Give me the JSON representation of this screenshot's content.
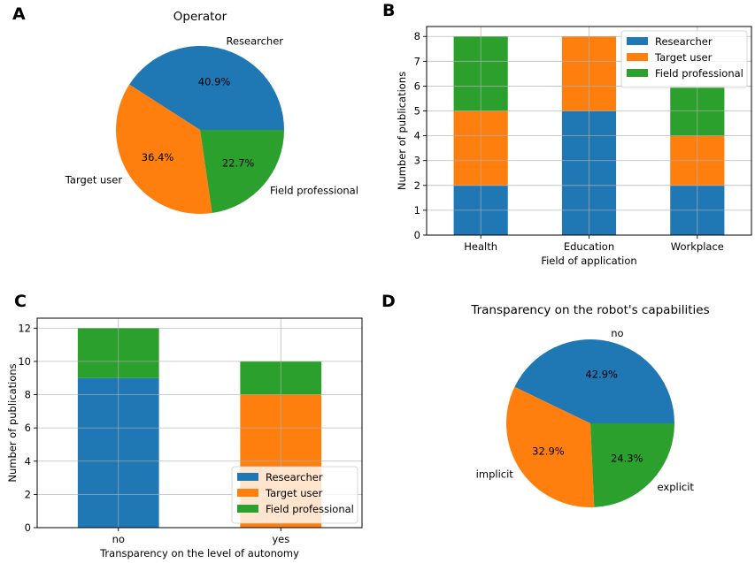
{
  "panels": {
    "A": {
      "letter": "A"
    },
    "B": {
      "letter": "B"
    },
    "C": {
      "letter": "C"
    },
    "D": {
      "letter": "D"
    }
  },
  "colors": {
    "Researcher": "#1f77b4",
    "Target user": "#ff7f0e",
    "Field professional": "#2ca02c",
    "no": "#1f77b4",
    "implicit": "#ff7f0e",
    "explicit": "#2ca02c"
  },
  "chart_data": [
    {
      "panel": "A",
      "type": "pie",
      "title": "Operator",
      "labels": [
        "Researcher",
        "Target user",
        "Field professional"
      ],
      "values": [
        40.9,
        36.4,
        22.7
      ],
      "value_labels": [
        "40.9%",
        "36.4%",
        "22.7%"
      ],
      "start_angle_deg": 0,
      "direction": "counterclockwise"
    },
    {
      "panel": "B",
      "type": "bar",
      "stacked": true,
      "title": "",
      "xlabel": "Field of application",
      "ylabel": "Number of publications",
      "categories": [
        "Health",
        "Education",
        "Workplace"
      ],
      "series": [
        {
          "name": "Researcher",
          "values": [
            2,
            5,
            2
          ]
        },
        {
          "name": "Target user",
          "values": [
            3,
            3,
            2
          ]
        },
        {
          "name": "Field professional",
          "values": [
            3,
            0,
            2
          ]
        }
      ],
      "yticks": [
        0,
        1,
        2,
        3,
        4,
        5,
        6,
        7,
        8
      ],
      "ylim": [
        0,
        8.4
      ],
      "grid": true,
      "legend": "top-right"
    },
    {
      "panel": "C",
      "type": "bar",
      "stacked": true,
      "title": "",
      "xlabel": "Transparency on the level of autonomy",
      "ylabel": "Number of publications",
      "categories": [
        "no",
        "yes"
      ],
      "series": [
        {
          "name": "Researcher",
          "values": [
            9,
            0
          ]
        },
        {
          "name": "Target user",
          "values": [
            0,
            8
          ]
        },
        {
          "name": "Field professional",
          "values": [
            3,
            2
          ]
        }
      ],
      "yticks": [
        0,
        2,
        4,
        6,
        8,
        10,
        12
      ],
      "ylim": [
        0,
        12.6
      ],
      "grid": true,
      "legend": "bottom-right"
    },
    {
      "panel": "D",
      "type": "pie",
      "title": "Transparency on the robot's capabilities",
      "labels": [
        "no",
        "implicit",
        "explicit"
      ],
      "values": [
        42.9,
        32.9,
        24.3
      ],
      "value_labels": [
        "42.9%",
        "32.9%",
        "24.3%"
      ],
      "start_angle_deg": 0,
      "direction": "counterclockwise"
    }
  ]
}
